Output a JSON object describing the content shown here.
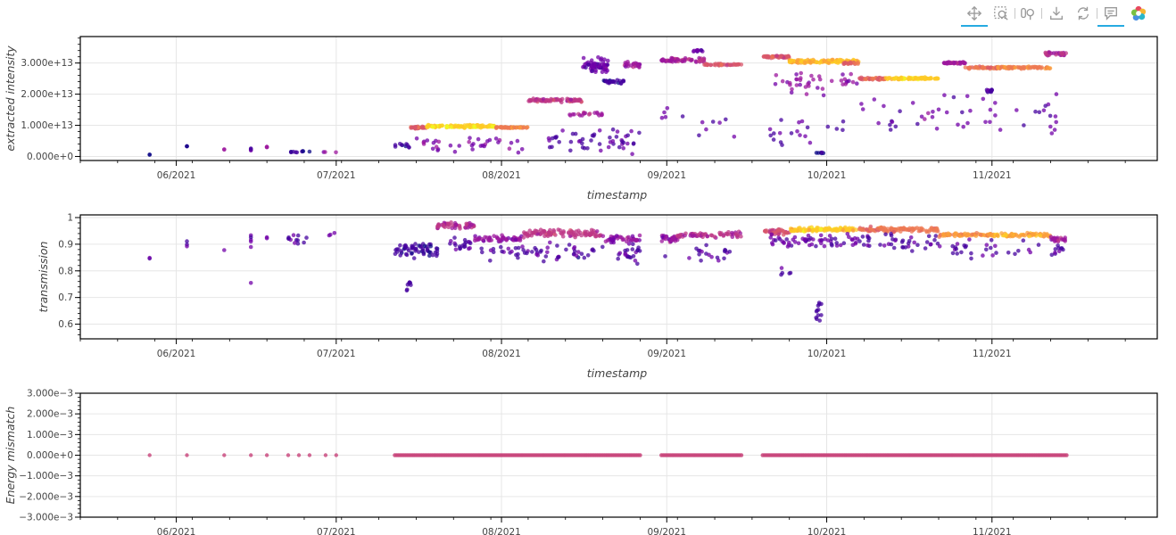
{
  "toolbar": {
    "tools": [
      {
        "name": "pan-tool",
        "icon": "pan-icon",
        "active": true
      },
      {
        "name": "box-zoom-tool",
        "icon": "box-zoom-icon",
        "active": false
      },
      {
        "name": "wheel-zoom-tool",
        "icon": "wheel-zoom-icon",
        "active": false
      },
      {
        "name": "save-tool",
        "icon": "save-icon",
        "active": false
      },
      {
        "name": "reset-tool",
        "icon": "reset-icon",
        "active": false
      },
      {
        "name": "hover-tool",
        "icon": "hover-icon",
        "active": true
      }
    ],
    "logo": "bokeh-logo"
  },
  "colors": {
    "accent": "#26aae1",
    "grid": "#e6e6e6",
    "palette": [
      "#0d0887",
      "#46039f",
      "#7201a8",
      "#9c179e",
      "#bd3786",
      "#d8576b",
      "#ed7953",
      "#fb9f3a",
      "#fdca26",
      "#f0f921"
    ],
    "mismatch_point": "#c8447a"
  },
  "chart_data": [
    {
      "type": "scatter",
      "xlabel": "timestamp",
      "ylabel": "extracted intensity",
      "x_type": "date",
      "xlim": [
        "2021-05-14",
        "2021-12-02"
      ],
      "ylim": [
        -1300000000000.0,
        38500000000000.0
      ],
      "x_ticks": [
        "06/2021",
        "07/2021",
        "08/2021",
        "09/2021",
        "10/2021",
        "11/2021"
      ],
      "y_ticks": [
        "0.000e+0",
        "1.000e+13",
        "2.000e+13",
        "3.000e+13"
      ],
      "y_tick_values": [
        0,
        10000000000000.0,
        20000000000000.0,
        30000000000000.0
      ],
      "grid": true,
      "clusters": [
        {
          "from": "2021-05-27",
          "to": "2021-05-27",
          "y": 500000000000.0,
          "spread": 200000000000.0,
          "c": 0.05,
          "n": 2
        },
        {
          "from": "2021-06-03",
          "to": "2021-06-03",
          "y": 3300000000000.0,
          "spread": 300000000000.0,
          "c": 0.05,
          "n": 3
        },
        {
          "from": "2021-06-10",
          "to": "2021-06-10",
          "y": 2200000000000.0,
          "spread": 200000000000.0,
          "c": 0.3,
          "n": 2
        },
        {
          "from": "2021-06-15",
          "to": "2021-06-15",
          "y": 2200000000000.0,
          "spread": 800000000000.0,
          "c": 0.2,
          "n": 4
        },
        {
          "from": "2021-06-18",
          "to": "2021-06-18",
          "y": 3000000000000.0,
          "spread": 300000000000.0,
          "c": 0.3,
          "n": 3
        },
        {
          "from": "2021-06-22",
          "to": "2021-06-26",
          "y": 1500000000000.0,
          "spread": 400000000000.0,
          "c": 0.05,
          "n": 10
        },
        {
          "from": "2021-06-28",
          "to": "2021-07-01",
          "y": 1400000000000.0,
          "spread": 200000000000.0,
          "c": 0.25,
          "n": 3
        },
        {
          "from": "2021-07-12",
          "to": "2021-07-15",
          "y": 3500000000000.0,
          "spread": 1000000000000.0,
          "c": 0.05,
          "n": 10
        },
        {
          "from": "2021-07-15",
          "to": "2021-07-18",
          "y": 9300000000000.0,
          "spread": 500000000000.0,
          "c": 0.55,
          "n": 30
        },
        {
          "from": "2021-07-18",
          "to": "2021-07-31",
          "y": 9700000000000.0,
          "spread": 600000000000.0,
          "c": 0.92,
          "n": 140
        },
        {
          "from": "2021-07-31",
          "to": "2021-08-06",
          "y": 9300000000000.0,
          "spread": 300000000000.0,
          "c": 0.7,
          "n": 50
        },
        {
          "from": "2021-08-06",
          "to": "2021-08-16",
          "y": 18000000000000.0,
          "spread": 800000000000.0,
          "c": 0.45,
          "n": 80
        },
        {
          "from": "2021-08-13",
          "to": "2021-08-20",
          "y": 13500000000000.0,
          "spread": 1000000000000.0,
          "c": 0.35,
          "n": 20
        },
        {
          "from": "2021-08-16",
          "to": "2021-08-21",
          "y": 29000000000000.0,
          "spread": 3500000000000.0,
          "c": 0.2,
          "n": 60
        },
        {
          "from": "2021-08-20",
          "to": "2021-08-24",
          "y": 24000000000000.0,
          "spread": 800000000000.0,
          "c": 0.1,
          "n": 25
        },
        {
          "from": "2021-08-24",
          "to": "2021-08-27",
          "y": 29500000000000.0,
          "spread": 1500000000000.0,
          "c": 0.35,
          "n": 25
        },
        {
          "from": "2021-08-09",
          "to": "2021-08-27",
          "y": 5000000000000.0,
          "spread": 5000000000000.0,
          "c": 0.15,
          "n": 50
        },
        {
          "from": "2021-07-15",
          "to": "2021-08-06",
          "y": 4000000000000.0,
          "spread": 4000000000000.0,
          "c": 0.25,
          "n": 35
        },
        {
          "from": "2021-08-31",
          "to": "2021-09-03",
          "y": 31000000000000.0,
          "spread": 800000000000.0,
          "c": 0.35,
          "n": 30
        },
        {
          "from": "2021-09-03",
          "to": "2021-09-08",
          "y": 31000000000000.0,
          "spread": 1000000000000.0,
          "c": 0.4,
          "n": 30
        },
        {
          "from": "2021-09-06",
          "to": "2021-09-08",
          "y": 34000000000000.0,
          "spread": 500000000000.0,
          "c": 0.2,
          "n": 10
        },
        {
          "from": "2021-09-08",
          "to": "2021-09-15",
          "y": 29500000000000.0,
          "spread": 500000000000.0,
          "c": 0.55,
          "n": 40
        },
        {
          "from": "2021-08-31",
          "to": "2021-09-15",
          "y": 10000000000000.0,
          "spread": 8000000000000.0,
          "c": 0.2,
          "n": 12
        },
        {
          "from": "2021-09-19",
          "to": "2021-09-24",
          "y": 32000000000000.0,
          "spread": 600000000000.0,
          "c": 0.55,
          "n": 50
        },
        {
          "from": "2021-09-24",
          "to": "2021-10-07",
          "y": 30500000000000.0,
          "spread": 700000000000.0,
          "c": 0.85,
          "n": 160
        },
        {
          "from": "2021-10-04",
          "to": "2021-10-07",
          "y": 30000000000000.0,
          "spread": 500000000000.0,
          "c": 0.6,
          "n": 20
        },
        {
          "from": "2021-09-20",
          "to": "2021-10-07",
          "y": 24000000000000.0,
          "spread": 5000000000000.0,
          "c": 0.3,
          "n": 40
        },
        {
          "from": "2021-09-20",
          "to": "2021-10-05",
          "y": 8000000000000.0,
          "spread": 7000000000000.0,
          "c": 0.15,
          "n": 20
        },
        {
          "from": "2021-09-29",
          "to": "2021-10-01",
          "y": 1200000000000.0,
          "spread": 500000000000.0,
          "c": 0.05,
          "n": 6
        },
        {
          "from": "2021-10-07",
          "to": "2021-10-12",
          "y": 25000000000000.0,
          "spread": 500000000000.0,
          "c": 0.6,
          "n": 40
        },
        {
          "from": "2021-10-12",
          "to": "2021-10-22",
          "y": 25000000000000.0,
          "spread": 500000000000.0,
          "c": 0.9,
          "n": 90
        },
        {
          "from": "2021-10-07",
          "to": "2021-10-22",
          "y": 13000000000000.0,
          "spread": 7000000000000.0,
          "c": 0.2,
          "n": 20
        },
        {
          "from": "2021-10-23",
          "to": "2021-10-27",
          "y": 30000000000000.0,
          "spread": 400000000000.0,
          "c": 0.35,
          "n": 35
        },
        {
          "from": "2021-10-27",
          "to": "2021-11-02",
          "y": 28500000000000.0,
          "spread": 500000000000.0,
          "c": 0.65,
          "n": 45
        },
        {
          "from": "2021-11-02",
          "to": "2021-11-12",
          "y": 28500000000000.0,
          "spread": 500000000000.0,
          "c": 0.7,
          "n": 80
        },
        {
          "from": "2021-10-31",
          "to": "2021-11-01",
          "y": 21000000000000.0,
          "spread": 800000000000.0,
          "c": 0.15,
          "n": 15
        },
        {
          "from": "2021-11-11",
          "to": "2021-11-15",
          "y": 33000000000000.0,
          "spread": 800000000000.0,
          "c": 0.4,
          "n": 30
        },
        {
          "from": "2021-10-23",
          "to": "2021-11-15",
          "y": 14000000000000.0,
          "spread": 10000000000000.0,
          "c": 0.2,
          "n": 30
        }
      ]
    },
    {
      "type": "scatter",
      "xlabel": "timestamp",
      "ylabel": "transmission",
      "x_type": "date",
      "xlim": [
        "2021-05-14",
        "2021-12-02"
      ],
      "ylim": [
        0.545,
        1.01
      ],
      "x_ticks": [
        "06/2021",
        "07/2021",
        "08/2021",
        "09/2021",
        "10/2021",
        "11/2021"
      ],
      "y_ticks": [
        "0.6",
        "0.7",
        "0.8",
        "0.9",
        "1"
      ],
      "y_tick_values": [
        0.6,
        0.7,
        0.8,
        0.9,
        1.0
      ],
      "grid": true,
      "clusters": [
        {
          "from": "2021-05-27",
          "to": "2021-05-27",
          "y": 0.845,
          "spread": 0.01,
          "c": 0.2,
          "n": 2
        },
        {
          "from": "2021-06-03",
          "to": "2021-06-03",
          "y": 0.895,
          "spread": 0.02,
          "c": 0.1,
          "n": 3
        },
        {
          "from": "2021-06-10",
          "to": "2021-06-10",
          "y": 0.88,
          "spread": 0.005,
          "c": 0.2,
          "n": 1
        },
        {
          "from": "2021-06-15",
          "to": "2021-06-15",
          "y": 0.92,
          "spread": 0.05,
          "c": 0.2,
          "n": 5
        },
        {
          "from": "2021-06-15",
          "to": "2021-06-15",
          "y": 0.755,
          "spread": 0.005,
          "c": 0.2,
          "n": 1
        },
        {
          "from": "2021-06-18",
          "to": "2021-06-18",
          "y": 0.925,
          "spread": 0.01,
          "c": 0.2,
          "n": 2
        },
        {
          "from": "2021-06-22",
          "to": "2021-06-26",
          "y": 0.92,
          "spread": 0.04,
          "c": 0.15,
          "n": 12
        },
        {
          "from": "2021-06-29",
          "to": "2021-07-01",
          "y": 0.94,
          "spread": 0.02,
          "c": 0.2,
          "n": 3
        },
        {
          "from": "2021-07-12",
          "to": "2021-07-20",
          "y": 0.88,
          "spread": 0.04,
          "c": 0.1,
          "n": 60
        },
        {
          "from": "2021-07-14",
          "to": "2021-07-15",
          "y": 0.74,
          "spread": 0.04,
          "c": 0.1,
          "n": 8
        },
        {
          "from": "2021-07-20",
          "to": "2021-07-27",
          "y": 0.97,
          "spread": 0.015,
          "c": 0.4,
          "n": 50
        },
        {
          "from": "2021-07-22",
          "to": "2021-07-27",
          "y": 0.9,
          "spread": 0.04,
          "c": 0.15,
          "n": 20
        },
        {
          "from": "2021-07-27",
          "to": "2021-08-05",
          "y": 0.92,
          "spread": 0.015,
          "c": 0.3,
          "n": 50
        },
        {
          "from": "2021-08-05",
          "to": "2021-08-20",
          "y": 0.94,
          "spread": 0.02,
          "c": 0.45,
          "n": 100
        },
        {
          "from": "2021-07-27",
          "to": "2021-08-27",
          "y": 0.87,
          "spread": 0.05,
          "c": 0.15,
          "n": 80
        },
        {
          "from": "2021-08-20",
          "to": "2021-08-27",
          "y": 0.92,
          "spread": 0.02,
          "c": 0.3,
          "n": 40
        },
        {
          "from": "2021-08-31",
          "to": "2021-09-03",
          "y": 0.92,
          "spread": 0.02,
          "c": 0.3,
          "n": 30
        },
        {
          "from": "2021-08-31",
          "to": "2021-09-15",
          "y": 0.87,
          "spread": 0.05,
          "c": 0.15,
          "n": 20
        },
        {
          "from": "2021-09-03",
          "to": "2021-09-15",
          "y": 0.935,
          "spread": 0.015,
          "c": 0.4,
          "n": 60
        },
        {
          "from": "2021-09-19",
          "to": "2021-09-24",
          "y": 0.945,
          "spread": 0.015,
          "c": 0.5,
          "n": 40
        },
        {
          "from": "2021-09-24",
          "to": "2021-10-07",
          "y": 0.955,
          "spread": 0.01,
          "c": 0.9,
          "n": 110
        },
        {
          "from": "2021-09-20",
          "to": "2021-10-07",
          "y": 0.91,
          "spread": 0.04,
          "c": 0.2,
          "n": 60
        },
        {
          "from": "2021-09-29",
          "to": "2021-09-30",
          "y": 0.65,
          "spread": 0.08,
          "c": 0.1,
          "n": 12
        },
        {
          "from": "2021-09-22",
          "to": "2021-09-25",
          "y": 0.8,
          "spread": 0.04,
          "c": 0.15,
          "n": 5
        },
        {
          "from": "2021-10-07",
          "to": "2021-10-22",
          "y": 0.955,
          "spread": 0.012,
          "c": 0.65,
          "n": 110
        },
        {
          "from": "2021-10-07",
          "to": "2021-10-22",
          "y": 0.91,
          "spread": 0.04,
          "c": 0.15,
          "n": 40
        },
        {
          "from": "2021-10-22",
          "to": "2021-11-01",
          "y": 0.935,
          "spread": 0.01,
          "c": 0.75,
          "n": 70
        },
        {
          "from": "2021-10-22",
          "to": "2021-11-15",
          "y": 0.88,
          "spread": 0.05,
          "c": 0.15,
          "n": 40
        },
        {
          "from": "2021-11-01",
          "to": "2021-11-12",
          "y": 0.935,
          "spread": 0.01,
          "c": 0.8,
          "n": 70
        },
        {
          "from": "2021-11-12",
          "to": "2021-11-15",
          "y": 0.92,
          "spread": 0.015,
          "c": 0.35,
          "n": 25
        }
      ]
    },
    {
      "type": "scatter",
      "xlabel": "",
      "ylabel": "Energy mismatch",
      "x_type": "date",
      "xlim": [
        "2021-05-14",
        "2021-12-02"
      ],
      "ylim": [
        -0.003,
        0.003
      ],
      "x_ticks": [
        "06/2021",
        "07/2021",
        "08/2021",
        "09/2021",
        "10/2021",
        "11/2021"
      ],
      "y_ticks": [
        "−3.000e−3",
        "−2.000e−3",
        "−1.000e−3",
        "0.000e+0",
        "1.000e−3",
        "2.000e−3",
        "3.000e−3"
      ],
      "y_tick_values": [
        -0.003,
        -0.002,
        -0.001,
        0,
        0.001,
        0.002,
        0.003
      ],
      "grid": true,
      "constant_y": 0,
      "point_dates": [
        "2021-05-27",
        "2021-06-03",
        "2021-06-10",
        "2021-06-15",
        "2021-06-18",
        "2021-06-22",
        "2021-06-24",
        "2021-06-26",
        "2021-06-29",
        "2021-07-01"
      ],
      "segments": [
        [
          "2021-07-12",
          "2021-08-27"
        ],
        [
          "2021-08-31",
          "2021-09-15"
        ],
        [
          "2021-09-19",
          "2021-11-15"
        ]
      ]
    }
  ]
}
